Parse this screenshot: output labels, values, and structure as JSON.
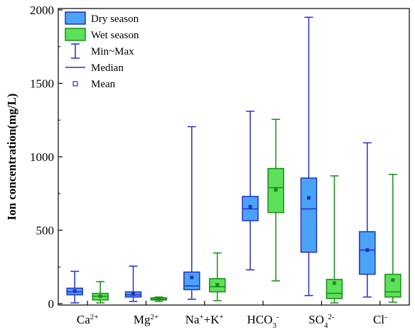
{
  "chart_data": {
    "type": "boxplot",
    "ylabel": "Ion concentration(mg/L)",
    "ylim": [
      0,
      2000
    ],
    "yticks": [
      0,
      500,
      1000,
      1500,
      2000
    ],
    "categories": [
      {
        "base": "Ca",
        "sup": "2+",
        "sub": "",
        "rest": []
      },
      {
        "base": "Mg",
        "sup": "2+",
        "sub": "",
        "rest": []
      },
      {
        "base": "Na",
        "sup": "+",
        "sub": "",
        "rest": [
          {
            "base": "+K",
            "sup": "+",
            "sub": ""
          }
        ]
      },
      {
        "base": "HCO",
        "sup": "-",
        "sub": "3",
        "rest": []
      },
      {
        "base": "SO",
        "sup": "2-",
        "sub": "4",
        "rest": []
      },
      {
        "base": "Cl",
        "sup": "-",
        "sub": "",
        "rest": []
      }
    ],
    "series": [
      {
        "name": "Dry season",
        "fill": "#4aa3f5",
        "stroke": "#2430c8",
        "boxes": [
          {
            "min": 5,
            "q1": 60,
            "median": 80,
            "q3": 105,
            "max": 220,
            "mean": 85
          },
          {
            "min": 15,
            "q1": 45,
            "median": 60,
            "q3": 80,
            "max": 255,
            "mean": 65
          },
          {
            "min": 30,
            "q1": 95,
            "median": 120,
            "q3": 215,
            "max": 1205,
            "mean": 178
          },
          {
            "min": 230,
            "q1": 565,
            "median": 645,
            "q3": 730,
            "max": 1310,
            "mean": 660
          },
          {
            "min": 55,
            "q1": 350,
            "median": 645,
            "q3": 855,
            "max": 1950,
            "mean": 720
          },
          {
            "min": 45,
            "q1": 200,
            "median": 365,
            "q3": 490,
            "max": 1095,
            "mean": 365
          }
        ]
      },
      {
        "name": "Wet season",
        "fill": "#5de05a",
        "stroke": "#179016",
        "boxes": [
          {
            "min": 5,
            "q1": 25,
            "median": 50,
            "q3": 70,
            "max": 150,
            "mean": 50
          },
          {
            "min": 15,
            "q1": 25,
            "median": 30,
            "q3": 40,
            "max": 45,
            "mean": 33
          },
          {
            "min": 20,
            "q1": 80,
            "median": 115,
            "q3": 170,
            "max": 345,
            "mean": 128
          },
          {
            "min": 155,
            "q1": 620,
            "median": 790,
            "q3": 920,
            "max": 1255,
            "mean": 775
          },
          {
            "min": 5,
            "q1": 35,
            "median": 70,
            "q3": 165,
            "max": 870,
            "mean": 140
          },
          {
            "min": 10,
            "q1": 45,
            "median": 80,
            "q3": 200,
            "max": 880,
            "mean": 160
          }
        ]
      }
    ],
    "legend": {
      "placement": "top-left",
      "items": [
        "Dry season",
        "Wet season",
        "Min~Max",
        "Median",
        "Mean"
      ]
    }
  }
}
